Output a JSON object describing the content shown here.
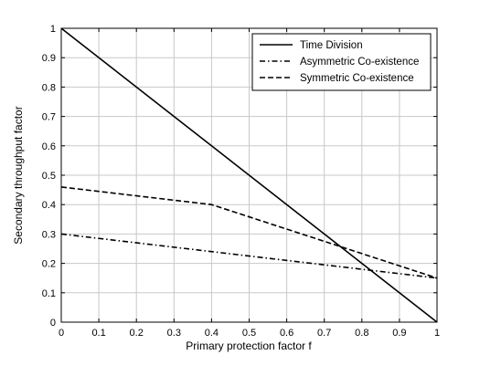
{
  "chart_data": {
    "type": "line",
    "title": "",
    "xlabel": "Primary protection factor f",
    "ylabel": "Secondary throughput factor",
    "xlim": [
      0,
      1
    ],
    "ylim": [
      0,
      1
    ],
    "xticks": [
      "0",
      "0.1",
      "0.2",
      "0.3",
      "0.4",
      "0.5",
      "0.6",
      "0.7",
      "0.8",
      "0.9",
      "1"
    ],
    "yticks": [
      "0",
      "0.1",
      "0.2",
      "0.3",
      "0.4",
      "0.5",
      "0.6",
      "0.7",
      "0.8",
      "0.9",
      "1"
    ],
    "grid": true,
    "legend_position": "top-right",
    "series": [
      {
        "name": "Time Division",
        "style": "solid",
        "x": [
          0,
          1
        ],
        "y": [
          1,
          0
        ]
      },
      {
        "name": "Asymmetric Co-existence",
        "style": "dash-dot",
        "x": [
          0,
          0.4,
          1
        ],
        "y": [
          0.3,
          0.24,
          0.15
        ]
      },
      {
        "name": "Symmetric Co-existence",
        "style": "dashed",
        "x": [
          0,
          0.4,
          1
        ],
        "y": [
          0.46,
          0.4,
          0.15
        ]
      }
    ],
    "line_color": "#000000",
    "grid_color": "#c8c8c8"
  }
}
